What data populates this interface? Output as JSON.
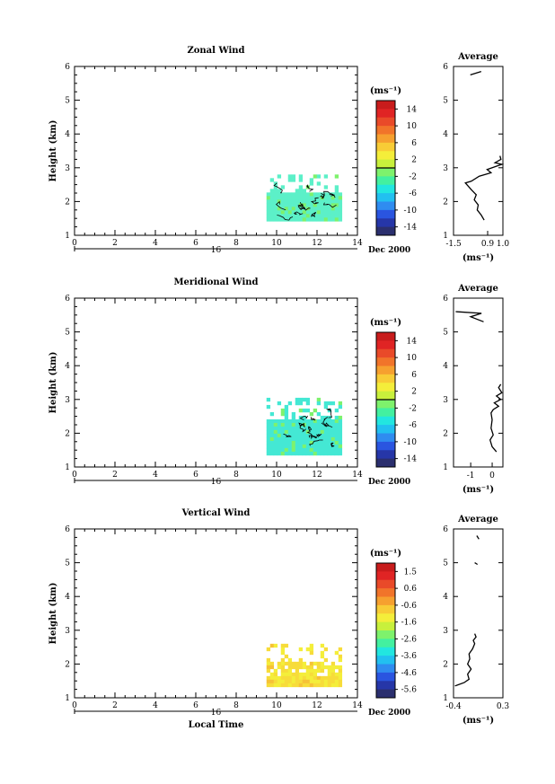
{
  "panels": [
    {
      "title": "Zonal Wind",
      "ylabel": "Height (km)",
      "xticks": [
        "0",
        "2",
        "4",
        "6",
        "8",
        "10",
        "12",
        "14"
      ],
      "yticks": [
        "1",
        "2",
        "3",
        "4",
        "5",
        "6"
      ],
      "date_tick": "16",
      "date_label": "Dec 2000",
      "colorbar_unit": "(ms⁻¹)",
      "colorbar_labels": [
        "14",
        "10",
        "6",
        "2",
        "-2",
        "-6",
        "-10",
        "-14"
      ],
      "profile_title": "Average",
      "profile_xticks": [
        "-1.5",
        "0.9",
        "1.0"
      ],
      "profile_yticks": [
        "1",
        "2",
        "3",
        "4",
        "5",
        "6"
      ],
      "profile_xlabel": "(ms⁻¹)"
    },
    {
      "title": "Meridional Wind",
      "ylabel": "Height (km)",
      "xticks": [
        "0",
        "2",
        "4",
        "6",
        "8",
        "10",
        "12",
        "14"
      ],
      "yticks": [
        "1",
        "2",
        "3",
        "4",
        "5",
        "6"
      ],
      "date_tick": "16",
      "date_label": "Dec 2000",
      "colorbar_unit": "(ms⁻¹)",
      "colorbar_labels": [
        "14",
        "10",
        "6",
        "2",
        "-2",
        "-6",
        "-10",
        "-14"
      ],
      "profile_title": "Average",
      "profile_xticks": [
        "-1",
        "0"
      ],
      "profile_yticks": [
        "1",
        "2",
        "3",
        "4",
        "5",
        "6"
      ],
      "profile_xlabel": "(ms⁻¹)"
    },
    {
      "title": "Vertical Wind",
      "ylabel": "Height (km)",
      "xticks": [
        "0",
        "2",
        "4",
        "6",
        "8",
        "10",
        "12",
        "14"
      ],
      "yticks": [
        "1",
        "2",
        "3",
        "4",
        "5",
        "6"
      ],
      "date_tick": "16",
      "date_label": "Dec 2000",
      "colorbar_unit": "(ms⁻¹)",
      "colorbar_labels": [
        "1.5",
        "0.6",
        "-0.6",
        "-1.6",
        "-2.6",
        "-3.6",
        "-4.6",
        "-5.6"
      ],
      "profile_title": "Average",
      "profile_xticks": [
        "-0.4",
        "0.3"
      ],
      "profile_yticks": [
        "1",
        "2",
        "3",
        "4",
        "5",
        "6"
      ],
      "profile_xlabel": "(ms⁻¹)",
      "xlabel": "Local Time"
    }
  ],
  "colors": {
    "colormap": [
      "#2b2f6e",
      "#2636a8",
      "#2a55e0",
      "#2f8cf0",
      "#22c0f0",
      "#22e6e0",
      "#43f0a0",
      "#7ef26c",
      "#c8f03c",
      "#f4ee3a",
      "#f8cc36",
      "#f6a02f",
      "#f1742a",
      "#e94a29",
      "#e02424",
      "#c81c1c"
    ],
    "zonal_fill": "#5cf0c8",
    "meridional_fill": "#44e8d4",
    "vertical_fill": "#f7dc3a"
  },
  "chart_data": [
    {
      "type": "heatmap",
      "title": "Zonal Wind",
      "xlabel": "",
      "ylabel": "Height (km)",
      "xlim": [
        0,
        14
      ],
      "ylim": [
        1,
        6
      ],
      "data_region": {
        "x": [
          9.5,
          13.2
        ],
        "y": [
          1.45,
          2.8
        ]
      },
      "color_range": [
        -16,
        16
      ],
      "colorbar_unit": "(ms⁻¹)",
      "profile": {
        "title": "Average",
        "xlim": [
          -1.5,
          1.0
        ],
        "ylim": [
          1,
          6
        ],
        "segments": [
          [
            [
              0.05,
              1.45
            ],
            [
              -0.1,
              1.6
            ],
            [
              -0.3,
              1.75
            ],
            [
              -0.25,
              1.9
            ],
            [
              -0.45,
              2.05
            ],
            [
              -0.35,
              2.2
            ],
            [
              -0.6,
              2.35
            ],
            [
              -0.9,
              2.55
            ],
            [
              -0.6,
              2.6
            ],
            [
              -0.2,
              2.75
            ],
            [
              0.4,
              2.85
            ],
            [
              0.2,
              2.95
            ],
            [
              0.7,
              3.05
            ],
            [
              0.95,
              3.1
            ],
            [
              0.6,
              3.15
            ],
            [
              0.9,
              3.25
            ],
            [
              0.85,
              3.35
            ]
          ],
          [
            [
              -0.65,
              5.75
            ],
            [
              -0.1,
              5.85
            ]
          ]
        ]
      }
    },
    {
      "type": "heatmap",
      "title": "Meridional Wind",
      "xlabel": "",
      "ylabel": "Height (km)",
      "xlim": [
        0,
        14
      ],
      "ylim": [
        1,
        6
      ],
      "data_region": {
        "x": [
          9.5,
          13.2
        ],
        "y": [
          1.45,
          3.05
        ]
      },
      "color_range": [
        -16,
        16
      ],
      "colorbar_unit": "(ms⁻¹)",
      "profile": {
        "title": "Average",
        "xlim": [
          -1.8,
          0.5
        ],
        "ylim": [
          1,
          6
        ],
        "segments": [
          [
            [
              0.2,
              1.45
            ],
            [
              0.0,
              1.6
            ],
            [
              -0.1,
              1.8
            ],
            [
              0.05,
              1.95
            ],
            [
              -0.05,
              2.15
            ],
            [
              0.0,
              2.4
            ],
            [
              -0.05,
              2.6
            ],
            [
              0.05,
              2.7
            ],
            [
              0.3,
              2.8
            ],
            [
              0.1,
              2.9
            ],
            [
              0.4,
              3.0
            ],
            [
              0.2,
              3.1
            ],
            [
              0.45,
              3.2
            ],
            [
              0.3,
              3.35
            ],
            [
              0.4,
              3.45
            ]
          ],
          [
            [
              -1.7,
              5.6
            ],
            [
              -0.5,
              5.55
            ],
            [
              -1.0,
              5.45
            ],
            [
              -0.4,
              5.3
            ]
          ]
        ]
      }
    },
    {
      "type": "heatmap",
      "title": "Vertical Wind",
      "xlabel": "Local Time",
      "ylabel": "Height (km)",
      "xlim": [
        0,
        14
      ],
      "ylim": [
        1,
        6
      ],
      "data_region": {
        "x": [
          9.5,
          13.2
        ],
        "y": [
          1.35,
          2.6
        ]
      },
      "color_range": [
        -6.1,
        2.0
      ],
      "colorbar_unit": "(ms⁻¹)",
      "profile": {
        "title": "Average",
        "xlim": [
          -0.4,
          0.3
        ],
        "ylim": [
          1,
          6
        ],
        "segments": [
          [
            [
              -0.38,
              1.35
            ],
            [
              -0.25,
              1.45
            ],
            [
              -0.18,
              1.55
            ],
            [
              -0.2,
              1.7
            ],
            [
              -0.15,
              1.85
            ],
            [
              -0.2,
              2.0
            ],
            [
              -0.17,
              2.15
            ],
            [
              -0.18,
              2.3
            ],
            [
              -0.13,
              2.45
            ],
            [
              -0.1,
              2.6
            ],
            [
              -0.12,
              2.7
            ],
            [
              -0.08,
              2.8
            ],
            [
              -0.1,
              2.9
            ]
          ],
          [
            [
              -0.1,
              5.0
            ],
            [
              -0.06,
              4.95
            ]
          ],
          [
            [
              -0.07,
              5.8
            ],
            [
              -0.04,
              5.7
            ]
          ]
        ]
      }
    }
  ]
}
